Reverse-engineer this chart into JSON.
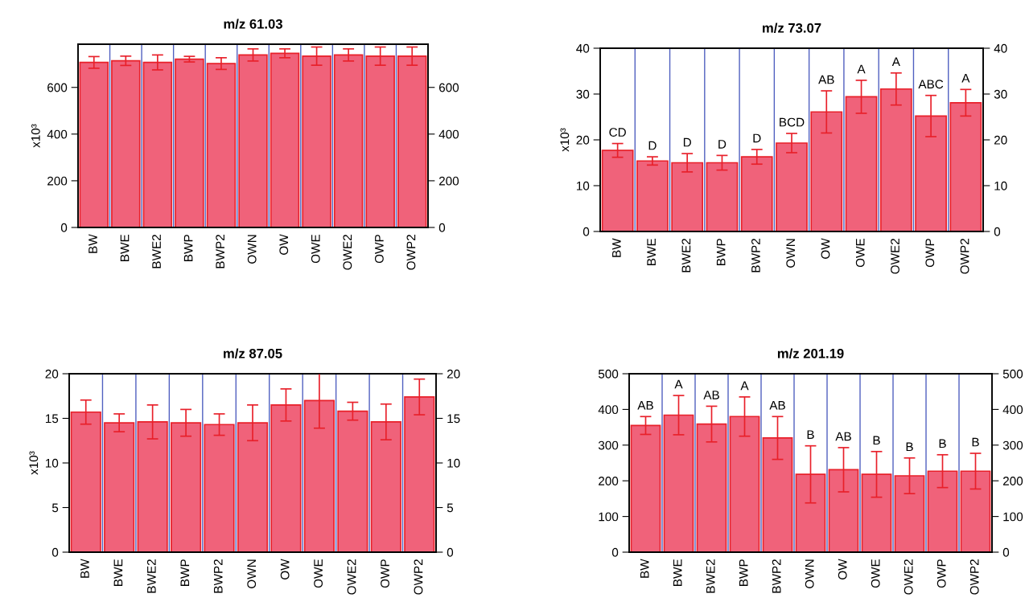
{
  "chart_data": [
    {
      "type": "bar",
      "title": "m/z 61.03",
      "ylabel": "x10³",
      "categories": [
        "BW",
        "BWE",
        "BWE2",
        "BWP",
        "BWP2",
        "OWN",
        "OW",
        "OWE",
        "OWE2",
        "OWP",
        "OWP2"
      ],
      "series": [
        {
          "color": "#f0627a",
          "values": [
            707,
            714,
            707,
            721,
            702,
            739,
            746,
            734,
            739,
            734,
            734
          ],
          "errors": [
            25,
            20,
            32,
            12,
            25,
            26,
            19,
            39,
            26,
            39,
            39
          ]
        }
      ],
      "ylim": [
        0,
        785
      ],
      "yticks": [
        0,
        200,
        400,
        600
      ],
      "y2lim": [
        0,
        785
      ],
      "y2ticks": [
        0,
        200,
        400,
        600
      ],
      "grid": "x",
      "legend": false
    },
    {
      "type": "bar",
      "title": "m/z 73.07",
      "ylabel": "x10³",
      "categories": [
        "BW",
        "BWE",
        "BWE2",
        "BWP",
        "BWP2",
        "OWN",
        "OW",
        "OWE",
        "OWE2",
        "OWP",
        "OWP2"
      ],
      "series": [
        {
          "color": "#f0627a",
          "values": [
            17.7,
            15.4,
            15.0,
            15.0,
            16.3,
            19.3,
            26.1,
            29.4,
            31.1,
            25.2,
            28.1
          ],
          "errors": [
            1.5,
            0.9,
            2.0,
            1.6,
            1.6,
            2.1,
            4.6,
            3.6,
            3.5,
            4.5,
            2.9
          ]
        }
      ],
      "annotations": [
        {
          "text": "CD",
          "x": "BW",
          "y": 19.2
        },
        {
          "text": "D",
          "x": "BWE",
          "y": 16.3
        },
        {
          "text": "D",
          "x": "BWE2",
          "y": 17.0
        },
        {
          "text": "D",
          "x": "BWP",
          "y": 16.6
        },
        {
          "text": "D",
          "x": "BWP2",
          "y": 17.9
        },
        {
          "text": "BCD",
          "x": "OWN",
          "y": 21.4
        },
        {
          "text": "AB",
          "x": "OW",
          "y": 30.7
        },
        {
          "text": "A",
          "x": "OWE",
          "y": 33.0
        },
        {
          "text": "A",
          "x": "OWE2",
          "y": 34.6
        },
        {
          "text": "ABC",
          "x": "OWP",
          "y": 29.7
        },
        {
          "text": "A",
          "x": "OWP2",
          "y": 31.0
        }
      ],
      "ylim": [
        0,
        40
      ],
      "yticks": [
        0,
        10,
        20,
        30,
        40
      ],
      "y2lim": [
        0,
        40
      ],
      "y2ticks": [
        0,
        10,
        20,
        30,
        40
      ],
      "grid": "x",
      "legend": false
    },
    {
      "type": "bar",
      "title": "m/z 87.05",
      "ylabel": "x10³",
      "categories": [
        "BW",
        "BWE",
        "BWE2",
        "BWP",
        "BWP2",
        "OWN",
        "OW",
        "OWE",
        "OWE2",
        "OWP",
        "OWP2"
      ],
      "series": [
        {
          "color": "#f0627a",
          "values": [
            15.7,
            14.5,
            14.6,
            14.5,
            14.3,
            14.5,
            16.5,
            17.0,
            15.8,
            14.6,
            17.4
          ],
          "errors": [
            1.35,
            1.0,
            1.9,
            1.5,
            1.2,
            2.0,
            1.8,
            3.1,
            1.0,
            2.0,
            2.0
          ]
        }
      ],
      "ylim": [
        0,
        20
      ],
      "yticks": [
        0,
        5,
        10,
        15,
        20
      ],
      "y2lim": [
        0,
        20
      ],
      "y2ticks": [
        0,
        5,
        10,
        15,
        20
      ],
      "grid": "x",
      "legend": false
    },
    {
      "type": "bar",
      "title": "m/z 201.19",
      "categories": [
        "BW",
        "BWE",
        "BWE2",
        "BWP",
        "BWP2",
        "OWN",
        "OW",
        "OWE",
        "OWE2",
        "OWP",
        "OWP2"
      ],
      "series": [
        {
          "color": "#f0627a",
          "values": [
            355,
            384,
            359,
            380,
            320,
            218,
            231,
            218,
            214,
            227,
            227
          ],
          "errors": [
            25,
            55,
            50,
            55,
            60,
            80,
            62,
            64,
            50,
            46,
            50
          ]
        }
      ],
      "annotations": [
        {
          "text": "AB",
          "x": "BW",
          "y": 380
        },
        {
          "text": "A",
          "x": "BWE",
          "y": 439
        },
        {
          "text": "AB",
          "x": "BWE2",
          "y": 409
        },
        {
          "text": "A",
          "x": "BWP",
          "y": 435
        },
        {
          "text": "AB",
          "x": "BWP2",
          "y": 380
        },
        {
          "text": "B",
          "x": "OWN",
          "y": 298
        },
        {
          "text": "AB",
          "x": "OW",
          "y": 293
        },
        {
          "text": "B",
          "x": "OWE",
          "y": 282
        },
        {
          "text": "B",
          "x": "OWE2",
          "y": 264
        },
        {
          "text": "B",
          "x": "OWP",
          "y": 273
        },
        {
          "text": "B",
          "x": "OWP2",
          "y": 277
        }
      ],
      "ylim": [
        0,
        500
      ],
      "yticks": [
        0,
        100,
        200,
        300,
        400,
        500
      ],
      "y2lim": [
        0,
        500
      ],
      "y2ticks": [
        0,
        100,
        200,
        300,
        400,
        500
      ],
      "grid": "x",
      "legend": false
    }
  ]
}
